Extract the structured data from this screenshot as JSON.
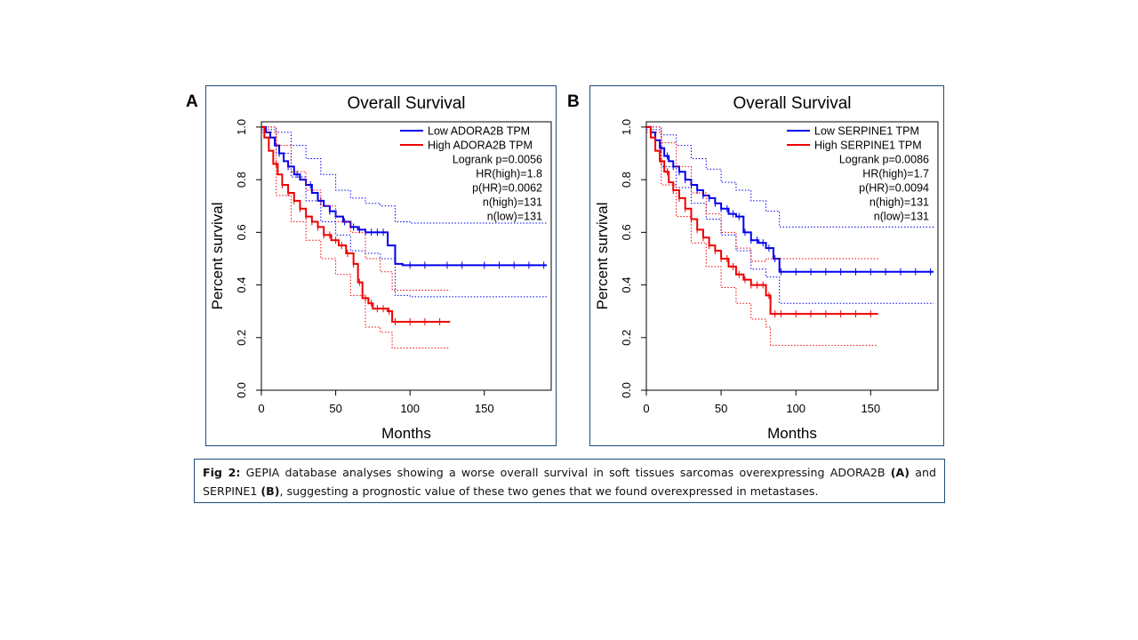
{
  "panels": [
    {
      "letter": "A"
    },
    {
      "letter": "B"
    }
  ],
  "caption": {
    "fig_label": "Fig 2:",
    "text1": " GEPIA database analyses showing a worse overall survival in soft tissues sarcomas overexpressing ADORA2B ",
    "ref_a": "(A)",
    "text2": " and SERPINE1 ",
    "ref_b": "(B)",
    "text3": ", suggesting a prognostic value of these two genes that we found overexpressed in metastases."
  },
  "colors": {
    "low": "#0000ee",
    "high": "#ee0000",
    "frame": "#1f4e79"
  },
  "chart_data": [
    {
      "type": "line",
      "title": "Overall Survival",
      "xlabel": "Months",
      "ylabel": "Percent survival",
      "xlim": [
        0,
        195
      ],
      "ylim": [
        0,
        1.02
      ],
      "xticks": [
        0,
        50,
        100,
        150
      ],
      "yticks": [
        0.0,
        0.2,
        0.4,
        0.6,
        0.8,
        1.0
      ],
      "legend_position": "top-right",
      "stats": [
        "Logrank p=0.0056",
        "HR(high)=1.8",
        "p(HR)=0.0062",
        "n(high)=131",
        "n(low)=131"
      ],
      "series": [
        {
          "name": "Low ADORA2B TPM",
          "color": "#0000ee",
          "x": [
            0,
            3,
            6,
            9,
            12,
            15,
            18,
            22,
            26,
            30,
            34,
            38,
            42,
            46,
            50,
            55,
            60,
            65,
            70,
            75,
            80,
            85,
            90,
            95,
            192
          ],
          "y": [
            1.0,
            0.98,
            0.96,
            0.93,
            0.9,
            0.87,
            0.85,
            0.82,
            0.8,
            0.78,
            0.75,
            0.72,
            0.7,
            0.68,
            0.66,
            0.64,
            0.62,
            0.61,
            0.6,
            0.6,
            0.6,
            0.55,
            0.48,
            0.475,
            0.475
          ],
          "censored_x": [
            12,
            18,
            24,
            33,
            40,
            46,
            56,
            62,
            66,
            70,
            74,
            78,
            82,
            100,
            110,
            125,
            135,
            150,
            160,
            170,
            180,
            190
          ]
        },
        {
          "name": "Low ADORA2B TPM upper 95% CI",
          "color": "#0000ee",
          "style": "dotted",
          "x": [
            0,
            10,
            20,
            30,
            40,
            50,
            60,
            70,
            80,
            90,
            100,
            192
          ],
          "y": [
            1.0,
            0.98,
            0.93,
            0.88,
            0.82,
            0.76,
            0.73,
            0.71,
            0.7,
            0.64,
            0.635,
            0.635
          ]
        },
        {
          "name": "Low ADORA2B TPM lower 95% CI",
          "color": "#0000ee",
          "style": "dotted",
          "x": [
            0,
            10,
            20,
            30,
            40,
            50,
            60,
            70,
            80,
            90,
            100,
            192
          ],
          "y": [
            0.99,
            0.9,
            0.81,
            0.72,
            0.64,
            0.59,
            0.53,
            0.52,
            0.5,
            0.36,
            0.355,
            0.355
          ]
        },
        {
          "name": "High ADORA2B TPM",
          "color": "#ee0000",
          "x": [
            0,
            2,
            5,
            8,
            11,
            14,
            18,
            22,
            26,
            30,
            34,
            38,
            42,
            47,
            52,
            57,
            62,
            65,
            68,
            72,
            75,
            80,
            85,
            88,
            127
          ],
          "y": [
            1.0,
            0.96,
            0.91,
            0.86,
            0.82,
            0.78,
            0.75,
            0.72,
            0.69,
            0.66,
            0.64,
            0.62,
            0.59,
            0.57,
            0.55,
            0.52,
            0.48,
            0.41,
            0.35,
            0.33,
            0.31,
            0.31,
            0.3,
            0.26,
            0.26
          ]
        },
        {
          "name": "High ADORA2B TPM upper 95% CI",
          "color": "#ee0000",
          "style": "dotted",
          "x": [
            0,
            10,
            20,
            30,
            40,
            50,
            60,
            70,
            80,
            88,
            127
          ],
          "y": [
            1.0,
            0.93,
            0.83,
            0.76,
            0.7,
            0.64,
            0.6,
            0.5,
            0.45,
            0.38,
            0.38
          ]
        },
        {
          "name": "High ADORA2B TPM lower 95% CI",
          "color": "#ee0000",
          "style": "dotted",
          "x": [
            0,
            10,
            20,
            30,
            40,
            50,
            60,
            70,
            80,
            88,
            127
          ],
          "y": [
            0.98,
            0.74,
            0.64,
            0.57,
            0.5,
            0.44,
            0.36,
            0.24,
            0.22,
            0.16,
            0.16
          ]
        }
      ],
      "censored_high_x": [
        13,
        17,
        21,
        26,
        30,
        34,
        38,
        44,
        48,
        52,
        58,
        74,
        80,
        88,
        95,
        105,
        112,
        120,
        126
      ]
    },
    {
      "type": "line",
      "title": "Overall Survival",
      "xlabel": "Months",
      "ylabel": "Percent survival",
      "xlim": [
        0,
        195
      ],
      "ylim": [
        0,
        1.02
      ],
      "xticks": [
        0,
        50,
        100,
        150
      ],
      "yticks": [
        0.0,
        0.2,
        0.4,
        0.6,
        0.8,
        1.0
      ],
      "legend_position": "top-right",
      "stats": [
        "Logrank p=0.0086",
        "HR(high)=1.7",
        "p(HR)=0.0094",
        "n(high)=131",
        "n(low)=131"
      ],
      "series": [
        {
          "name": "Low SERPINE1 TPM",
          "color": "#0000ee",
          "x": [
            0,
            3,
            6,
            9,
            12,
            15,
            18,
            22,
            26,
            30,
            34,
            38,
            42,
            46,
            50,
            55,
            60,
            65,
            70,
            75,
            80,
            85,
            89,
            192
          ],
          "y": [
            1.0,
            0.98,
            0.95,
            0.92,
            0.89,
            0.87,
            0.85,
            0.83,
            0.8,
            0.78,
            0.76,
            0.74,
            0.73,
            0.71,
            0.69,
            0.67,
            0.66,
            0.6,
            0.57,
            0.56,
            0.54,
            0.5,
            0.45,
            0.45
          ]
        },
        {
          "name": "Low SERPINE1 TPM upper 95% CI",
          "color": "#0000ee",
          "style": "dotted",
          "x": [
            0,
            10,
            20,
            30,
            40,
            50,
            60,
            70,
            80,
            89,
            192
          ],
          "y": [
            1.0,
            0.97,
            0.93,
            0.88,
            0.84,
            0.79,
            0.76,
            0.72,
            0.68,
            0.62,
            0.615
          ]
        },
        {
          "name": "Low SERPINE1 TPM lower 95% CI",
          "color": "#0000ee",
          "style": "dotted",
          "x": [
            0,
            10,
            20,
            30,
            40,
            50,
            60,
            70,
            80,
            89,
            192
          ],
          "y": [
            0.99,
            0.85,
            0.77,
            0.71,
            0.65,
            0.59,
            0.53,
            0.46,
            0.43,
            0.33,
            0.33
          ]
        },
        {
          "name": "High SERPINE1 TPM",
          "color": "#ee0000",
          "x": [
            0,
            3,
            6,
            9,
            12,
            15,
            18,
            22,
            26,
            30,
            34,
            38,
            42,
            46,
            50,
            55,
            60,
            65,
            70,
            75,
            80,
            83,
            155
          ],
          "y": [
            1.0,
            0.96,
            0.91,
            0.87,
            0.83,
            0.79,
            0.76,
            0.73,
            0.69,
            0.65,
            0.61,
            0.58,
            0.55,
            0.53,
            0.5,
            0.47,
            0.44,
            0.42,
            0.4,
            0.4,
            0.36,
            0.29,
            0.29
          ]
        },
        {
          "name": "High SERPINE1 TPM upper 95% CI",
          "color": "#ee0000",
          "style": "dotted",
          "x": [
            0,
            10,
            20,
            30,
            40,
            50,
            60,
            70,
            80,
            83,
            155
          ],
          "y": [
            1.0,
            0.94,
            0.85,
            0.75,
            0.67,
            0.6,
            0.54,
            0.49,
            0.5,
            0.5,
            0.5
          ]
        },
        {
          "name": "High SERPINE1 TPM lower 95% CI",
          "color": "#ee0000",
          "style": "dotted",
          "x": [
            0,
            10,
            20,
            30,
            40,
            50,
            60,
            70,
            80,
            83,
            155
          ],
          "y": [
            0.98,
            0.78,
            0.66,
            0.56,
            0.47,
            0.39,
            0.33,
            0.27,
            0.24,
            0.17,
            0.17
          ]
        }
      ]
    }
  ]
}
